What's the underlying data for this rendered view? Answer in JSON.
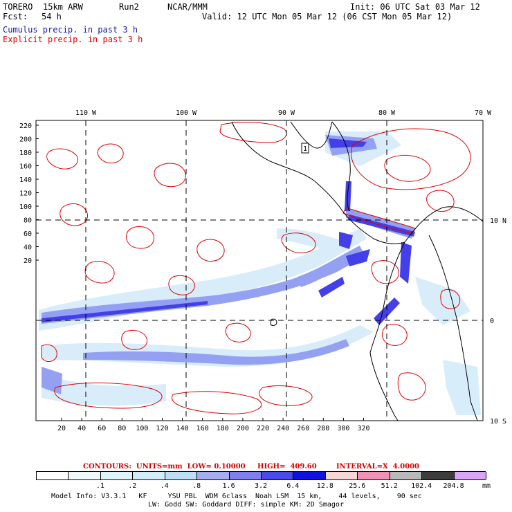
{
  "header": {
    "model": "TORERO",
    "resolution": "15km ARW",
    "run": "Run2",
    "org": "NCAR/MMM",
    "init": "Init: 06 UTC Sat 03 Mar 12",
    "fcst_label": "Fcst:",
    "fcst_value": "54 h",
    "valid": "Valid: 12 UTC Mon 05 Mar 12 (06 CST Mon 05 Mar 12)"
  },
  "legend_text": {
    "cumulus": "Cumulus precip. in past 3 h",
    "explicit": "Explicit precip. in past 3 h"
  },
  "map": {
    "top_lon_labels": [
      "110 W",
      "100 W",
      "90 W",
      "80 W",
      "70 W"
    ],
    "left_y_ticks": [
      "220",
      "200",
      "180",
      "160",
      "140",
      "120",
      "100",
      "80",
      "60",
      "40",
      "20"
    ],
    "bottom_x_ticks": [
      "20",
      "40",
      "60",
      "80",
      "100",
      "120",
      "140",
      "160",
      "180",
      "200",
      "220",
      "240",
      "260",
      "280",
      "300",
      "320"
    ],
    "right_lat_labels": [
      "10 N",
      "0",
      "10 S"
    ],
    "marker": "1",
    "colors": {
      "cumulus_light": "#d6ecfa",
      "cumulus_mid": "#8f9cf2",
      "cumulus_dark": "#3a36e8",
      "explicit_contour": "#e00000",
      "land_outline": "#000000"
    }
  },
  "contours_line": {
    "label": "CONTOURS:  UNITS=mm  LOW= 0.10000",
    "high": "HIGH=  409.60",
    "interval": "INTERVAL=X  4.0000"
  },
  "colorbar": {
    "labels": [
      ".1",
      ".2",
      ".4",
      ".8",
      "1.6",
      "3.2",
      "6.4",
      "12.8",
      "25.6",
      "51.2",
      "102.4",
      "204.8"
    ],
    "unit": "mm",
    "colors": [
      "#ffffff",
      "#f0f8fc",
      "#e0f2fa",
      "#d2ecf8",
      "#bcdff5",
      "#a6aef2",
      "#7e80ee",
      "#4a4ae8",
      "#1212e0",
      "#f7d6d6",
      "#f291b6",
      "#b8b8b8",
      "#3c3c3c",
      "#d8a6f2"
    ]
  },
  "footer": {
    "line1": "Model Info: V3.3.1   KF     YSU PBL  WDM 6class  Noah LSM  15 km,    44 levels,    90 sec",
    "line2": "LW: Godd SW: Goddard DIFF: simple KM: 2D Smagor"
  }
}
